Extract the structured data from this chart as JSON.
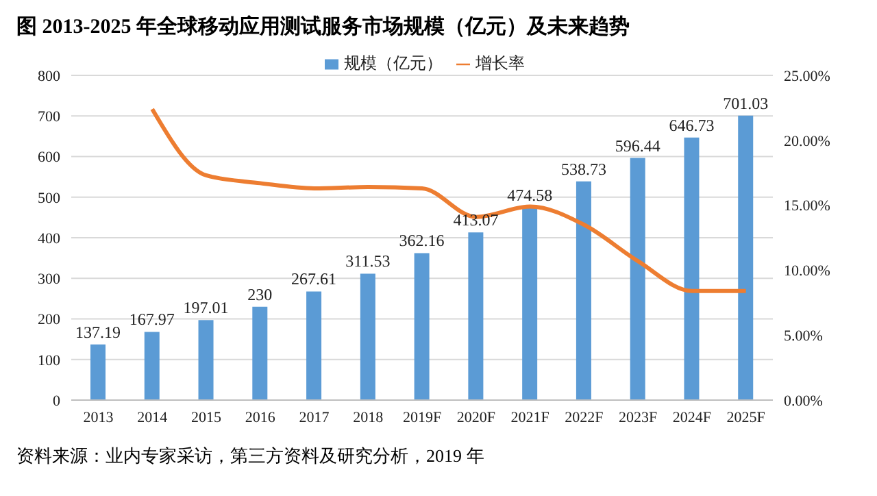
{
  "chart_data": {
    "type": "bar",
    "title": "图 2013-2025 年全球移动应用测试服务市场规模（亿元）及未来趋势",
    "categories": [
      "2013",
      "2014",
      "2015",
      "2016",
      "2017",
      "2018",
      "2019F",
      "2020F",
      "2021F",
      "2022F",
      "2023F",
      "2024F",
      "2025F"
    ],
    "series": [
      {
        "name": "规模（亿元）",
        "color": "#5b9bd5",
        "values": [
          137.19,
          167.97,
          197.01,
          230,
          267.61,
          311.53,
          362.16,
          413.07,
          474.58,
          538.73,
          596.44,
          646.73,
          701.03
        ],
        "data_labels": true
      },
      {
        "name": "增长率",
        "type": "line",
        "axis": "y2",
        "color": "#ed7d31",
        "marker": "none",
        "values": [
          null,
          22.4,
          17.3,
          16.7,
          16.3,
          16.4,
          16.3,
          14.1,
          14.9,
          13.5,
          10.7,
          8.4,
          8.4
        ]
      }
    ],
    "ylim": [
      0,
      800
    ],
    "yticks": [
      0,
      100,
      200,
      300,
      400,
      500,
      600,
      700,
      800
    ],
    "y2lim": [
      0,
      25
    ],
    "y2ticks": [
      {
        "value": 0,
        "label": "0.00%"
      },
      {
        "value": 5,
        "label": "5.00%"
      },
      {
        "value": 10,
        "label": "10.00%"
      },
      {
        "value": 15,
        "label": "15.00%"
      },
      {
        "value": 20,
        "label": "20.00%"
      },
      {
        "value": 25,
        "label": "25.00%"
      }
    ],
    "grid": "y",
    "legend": "top",
    "annotations": [
      "资料来源：业内专家采访，第三方资料及研究分析，2019 年"
    ]
  }
}
